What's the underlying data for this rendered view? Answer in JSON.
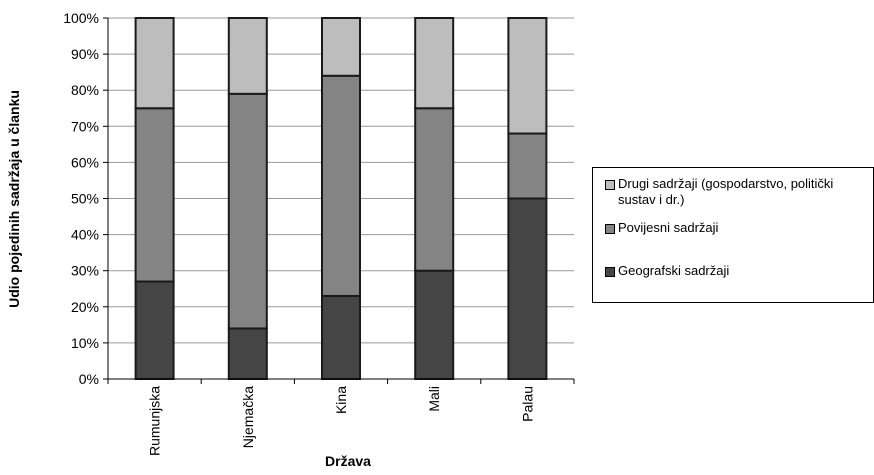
{
  "chart_data": {
    "type": "bar",
    "stacked": true,
    "categories": [
      "Rumunjska",
      "Njemačka",
      "Kina",
      "Mali",
      "Palau"
    ],
    "series": [
      {
        "name": "Geografski sadržaji",
        "values": [
          27,
          14,
          23,
          30,
          50
        ],
        "color": "#454545"
      },
      {
        "name": "Povijesni sadržaji",
        "values": [
          48,
          65,
          61,
          45,
          18
        ],
        "color": "#848484"
      },
      {
        "name": "Drugi sadržaji (gospodarstvo, politički sustav i dr.)",
        "values": [
          25,
          21,
          16,
          25,
          32
        ],
        "color": "#bdbdbd"
      }
    ],
    "title": "",
    "xlabel": "Država",
    "ylabel": "Udio pojedinih sadržaja u članku",
    "ylim": [
      0,
      100
    ],
    "yticks": [
      "0%",
      "10%",
      "20%",
      "30%",
      "40%",
      "50%",
      "60%",
      "70%",
      "80%",
      "90%",
      "100%"
    ],
    "grid": true,
    "legend_position": "right",
    "legend_order": [
      "Drugi sadržaji (gospodarstvo, politički sustav i dr.)",
      "Povijesni sadržaji",
      "Geografski sadržaji"
    ]
  }
}
